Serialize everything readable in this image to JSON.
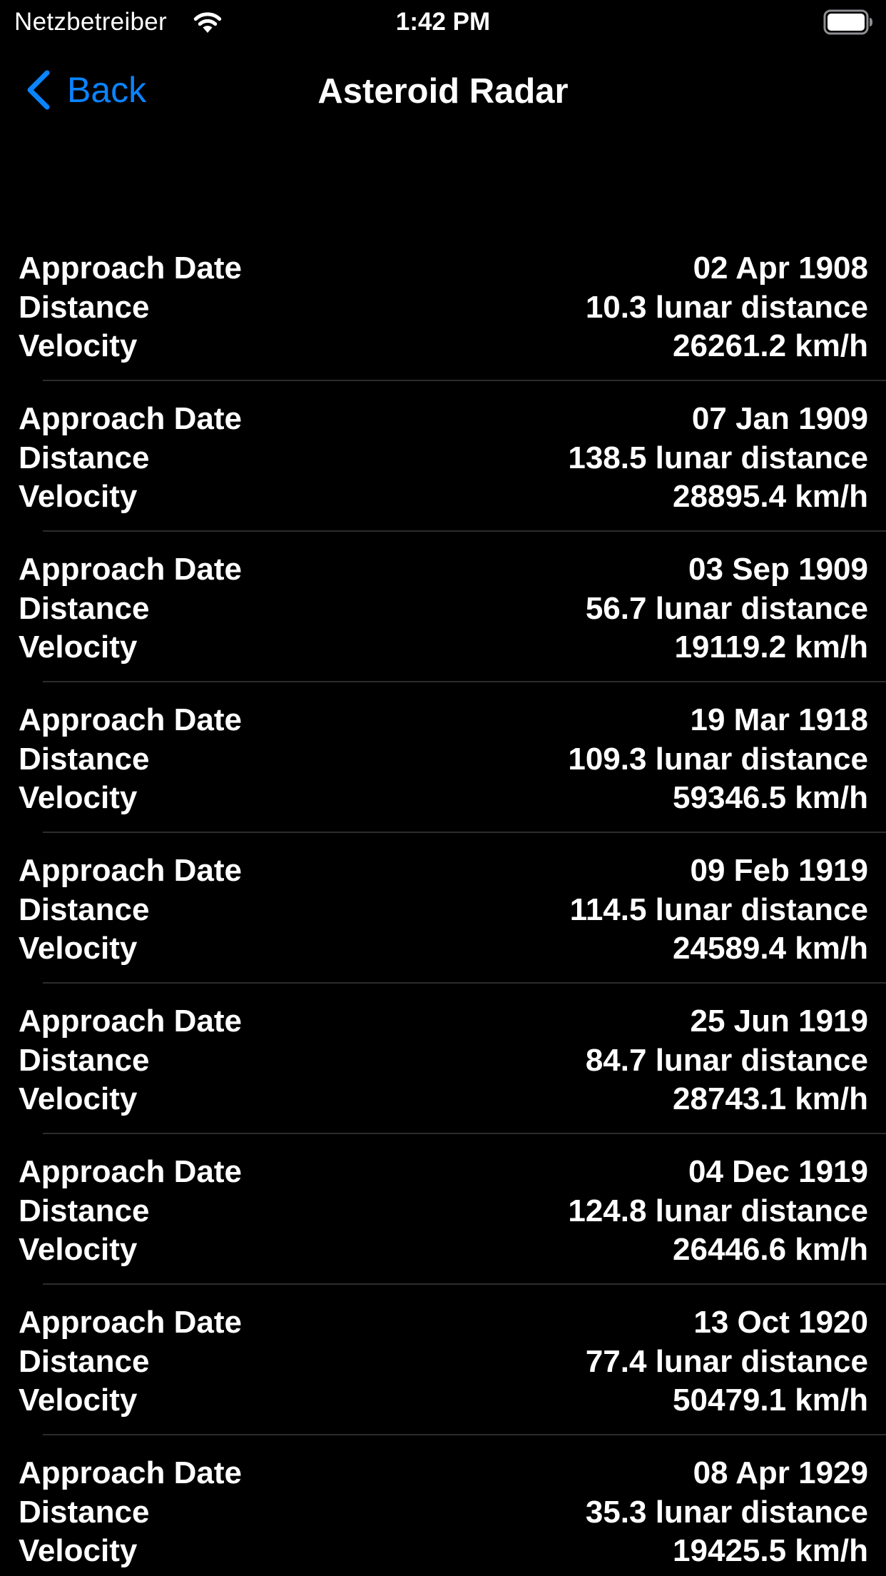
{
  "status_bar": {
    "carrier": "Netzbetreiber",
    "time": "1:42 PM"
  },
  "nav_bar": {
    "back_label": "Back",
    "title": "Asteroid Radar"
  },
  "labels": {
    "approach_date": "Approach Date",
    "distance": "Distance",
    "velocity": "Velocity"
  },
  "asteroids": [
    {
      "date": "02 Apr 1908",
      "distance": "10.3 lunar distance",
      "velocity": "26261.2 km/h"
    },
    {
      "date": "07 Jan 1909",
      "distance": "138.5 lunar distance",
      "velocity": "28895.4 km/h"
    },
    {
      "date": "03 Sep 1909",
      "distance": "56.7 lunar distance",
      "velocity": "19119.2 km/h"
    },
    {
      "date": "19 Mar 1918",
      "distance": "109.3 lunar distance",
      "velocity": "59346.5 km/h"
    },
    {
      "date": "09 Feb 1919",
      "distance": "114.5 lunar distance",
      "velocity": "24589.4 km/h"
    },
    {
      "date": "25 Jun 1919",
      "distance": "84.7 lunar distance",
      "velocity": "28743.1 km/h"
    },
    {
      "date": "04 Dec 1919",
      "distance": "124.8 lunar distance",
      "velocity": "26446.6 km/h"
    },
    {
      "date": "13 Oct 1920",
      "distance": "77.4 lunar distance",
      "velocity": "50479.1 km/h"
    },
    {
      "date": "08 Apr 1929",
      "distance": "35.3 lunar distance",
      "velocity": "19425.5 km/h"
    }
  ],
  "colors": {
    "background": "#000000",
    "text": "#ffffff",
    "accent": "#0a84ff",
    "separator": "#2c2c2e"
  }
}
